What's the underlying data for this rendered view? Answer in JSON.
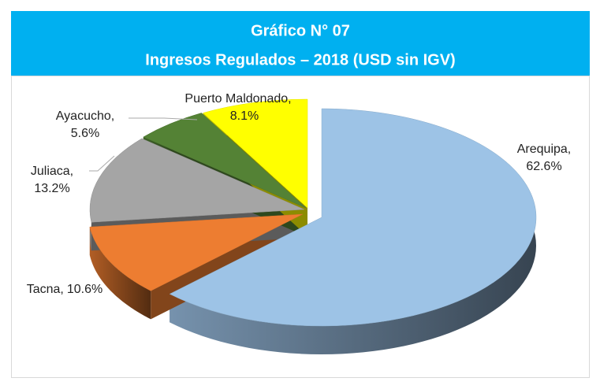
{
  "chart_data": {
    "type": "pie",
    "title": "Gráfico N° 07",
    "subtitle": "Ingresos Regulados – 2018 (USD sin IGV)",
    "categories": [
      "Arequipa,",
      "Tacna,",
      "Juliaca,",
      "Ayacucho,",
      "Puerto Maldonado,"
    ],
    "values": [
      62.6,
      10.6,
      13.2,
      5.6,
      8.1
    ],
    "value_labels": [
      "62.6%",
      "10.6%",
      "13.2%",
      "5.6%",
      "8.1%"
    ],
    "colors": [
      "#9dc3e6",
      "#ed7d31",
      "#a5a5a5",
      "#548235",
      "#ffff00"
    ]
  }
}
